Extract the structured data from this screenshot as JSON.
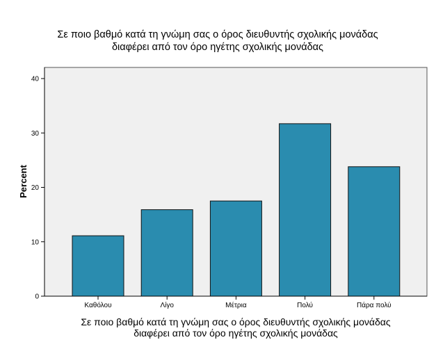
{
  "chart_data": {
    "type": "bar",
    "title_lines": [
      "Σε ποιο βαθμό κατά τη γνώμη σας ο όρος διευθυντής σχολικής μονάδας",
      "διαφέρει από τον όρο ηγέτης σχολικής μονάδας"
    ],
    "xlabel_lines": [
      "Σε ποιο βαθμό κατά τη γνώμη σας ο όρος διευθυντής σχολικής μονάδας",
      "διαφέρει από τον όρο ηγέτης σχολικής μονάδας"
    ],
    "ylabel": "Percent",
    "categories": [
      "Καθόλου",
      "Λίγο",
      "Μέτρια",
      "Πολύ",
      "Πάρα πολύ"
    ],
    "values": [
      11.1,
      15.9,
      17.5,
      31.7,
      23.8
    ],
    "ylim": [
      0,
      42
    ],
    "yticks": [
      0,
      10,
      20,
      30,
      40
    ],
    "grid": false,
    "colors": {
      "bar_fill": "#2a8caf",
      "bar_stroke": "#111111",
      "plot_bg": "#f0f0f0",
      "axis": "#000000"
    }
  }
}
